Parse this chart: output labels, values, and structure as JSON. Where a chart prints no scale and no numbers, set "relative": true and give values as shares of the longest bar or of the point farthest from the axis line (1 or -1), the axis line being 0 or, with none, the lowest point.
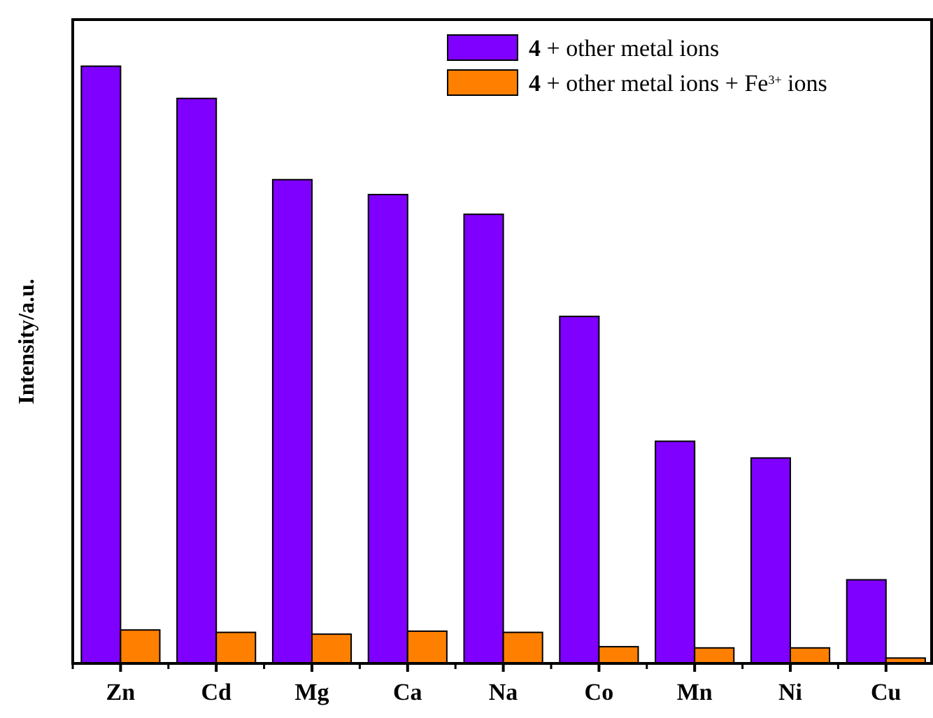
{
  "chart_data": {
    "type": "bar",
    "relative": true,
    "ylabel": "Intensity/a.u.",
    "legend": "top right",
    "categories": [
      "Zn",
      "Cd",
      "Mg",
      "Ca",
      "Na",
      "Co",
      "Mn",
      "Ni",
      "Cu"
    ],
    "series": [
      {
        "name": "4 + other metal ions",
        "color": "#7f00ff",
        "values": [
          1,
          0.946,
          0.81,
          0.785,
          0.752,
          0.581,
          0.372,
          0.344,
          0.14
        ]
      },
      {
        "name": "4 + other metal ions + Fe$^{3+}$ ions",
        "color": "#ff8000",
        "values": [
          0.056,
          0.052,
          0.049,
          0.054,
          0.052,
          0.028,
          0.026,
          0.026,
          0.009
        ]
      }
    ]
  }
}
